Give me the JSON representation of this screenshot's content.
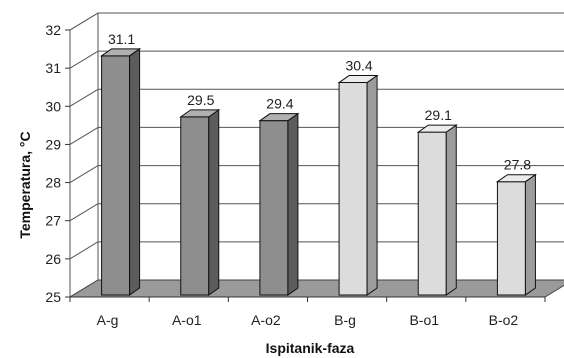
{
  "chart_data": {
    "type": "bar",
    "style": "3d-column",
    "title": "",
    "xlabel": "Ispitanik-faza",
    "ylabel": "Temperatura, °C",
    "ylim": [
      25,
      32
    ],
    "yticks": [
      "25",
      "26",
      "27",
      "28",
      "29",
      "30",
      "31",
      "32"
    ],
    "categories": [
      "A-g",
      "A-o1",
      "A-o2",
      "B-g",
      "B-o1",
      "B-o2"
    ],
    "values": [
      31.1,
      29.5,
      29.4,
      30.4,
      29.1,
      27.8
    ],
    "value_labels": [
      "31.1",
      "29.5",
      "29.4",
      "30.4",
      "29.1",
      "27.8"
    ],
    "bar_groups": [
      "A",
      "A",
      "A",
      "B",
      "B",
      "B"
    ],
    "colors": {
      "A": {
        "front": "#8e8e8e",
        "side": "#5c5c5c",
        "top": "#b0b0b0"
      },
      "B": {
        "front": "#dcdcdc",
        "side": "#9c9c9c",
        "top": "#ececec"
      },
      "floor": "#9a9a9a",
      "gridline": "#555555"
    },
    "grid": true,
    "legend": "none"
  }
}
